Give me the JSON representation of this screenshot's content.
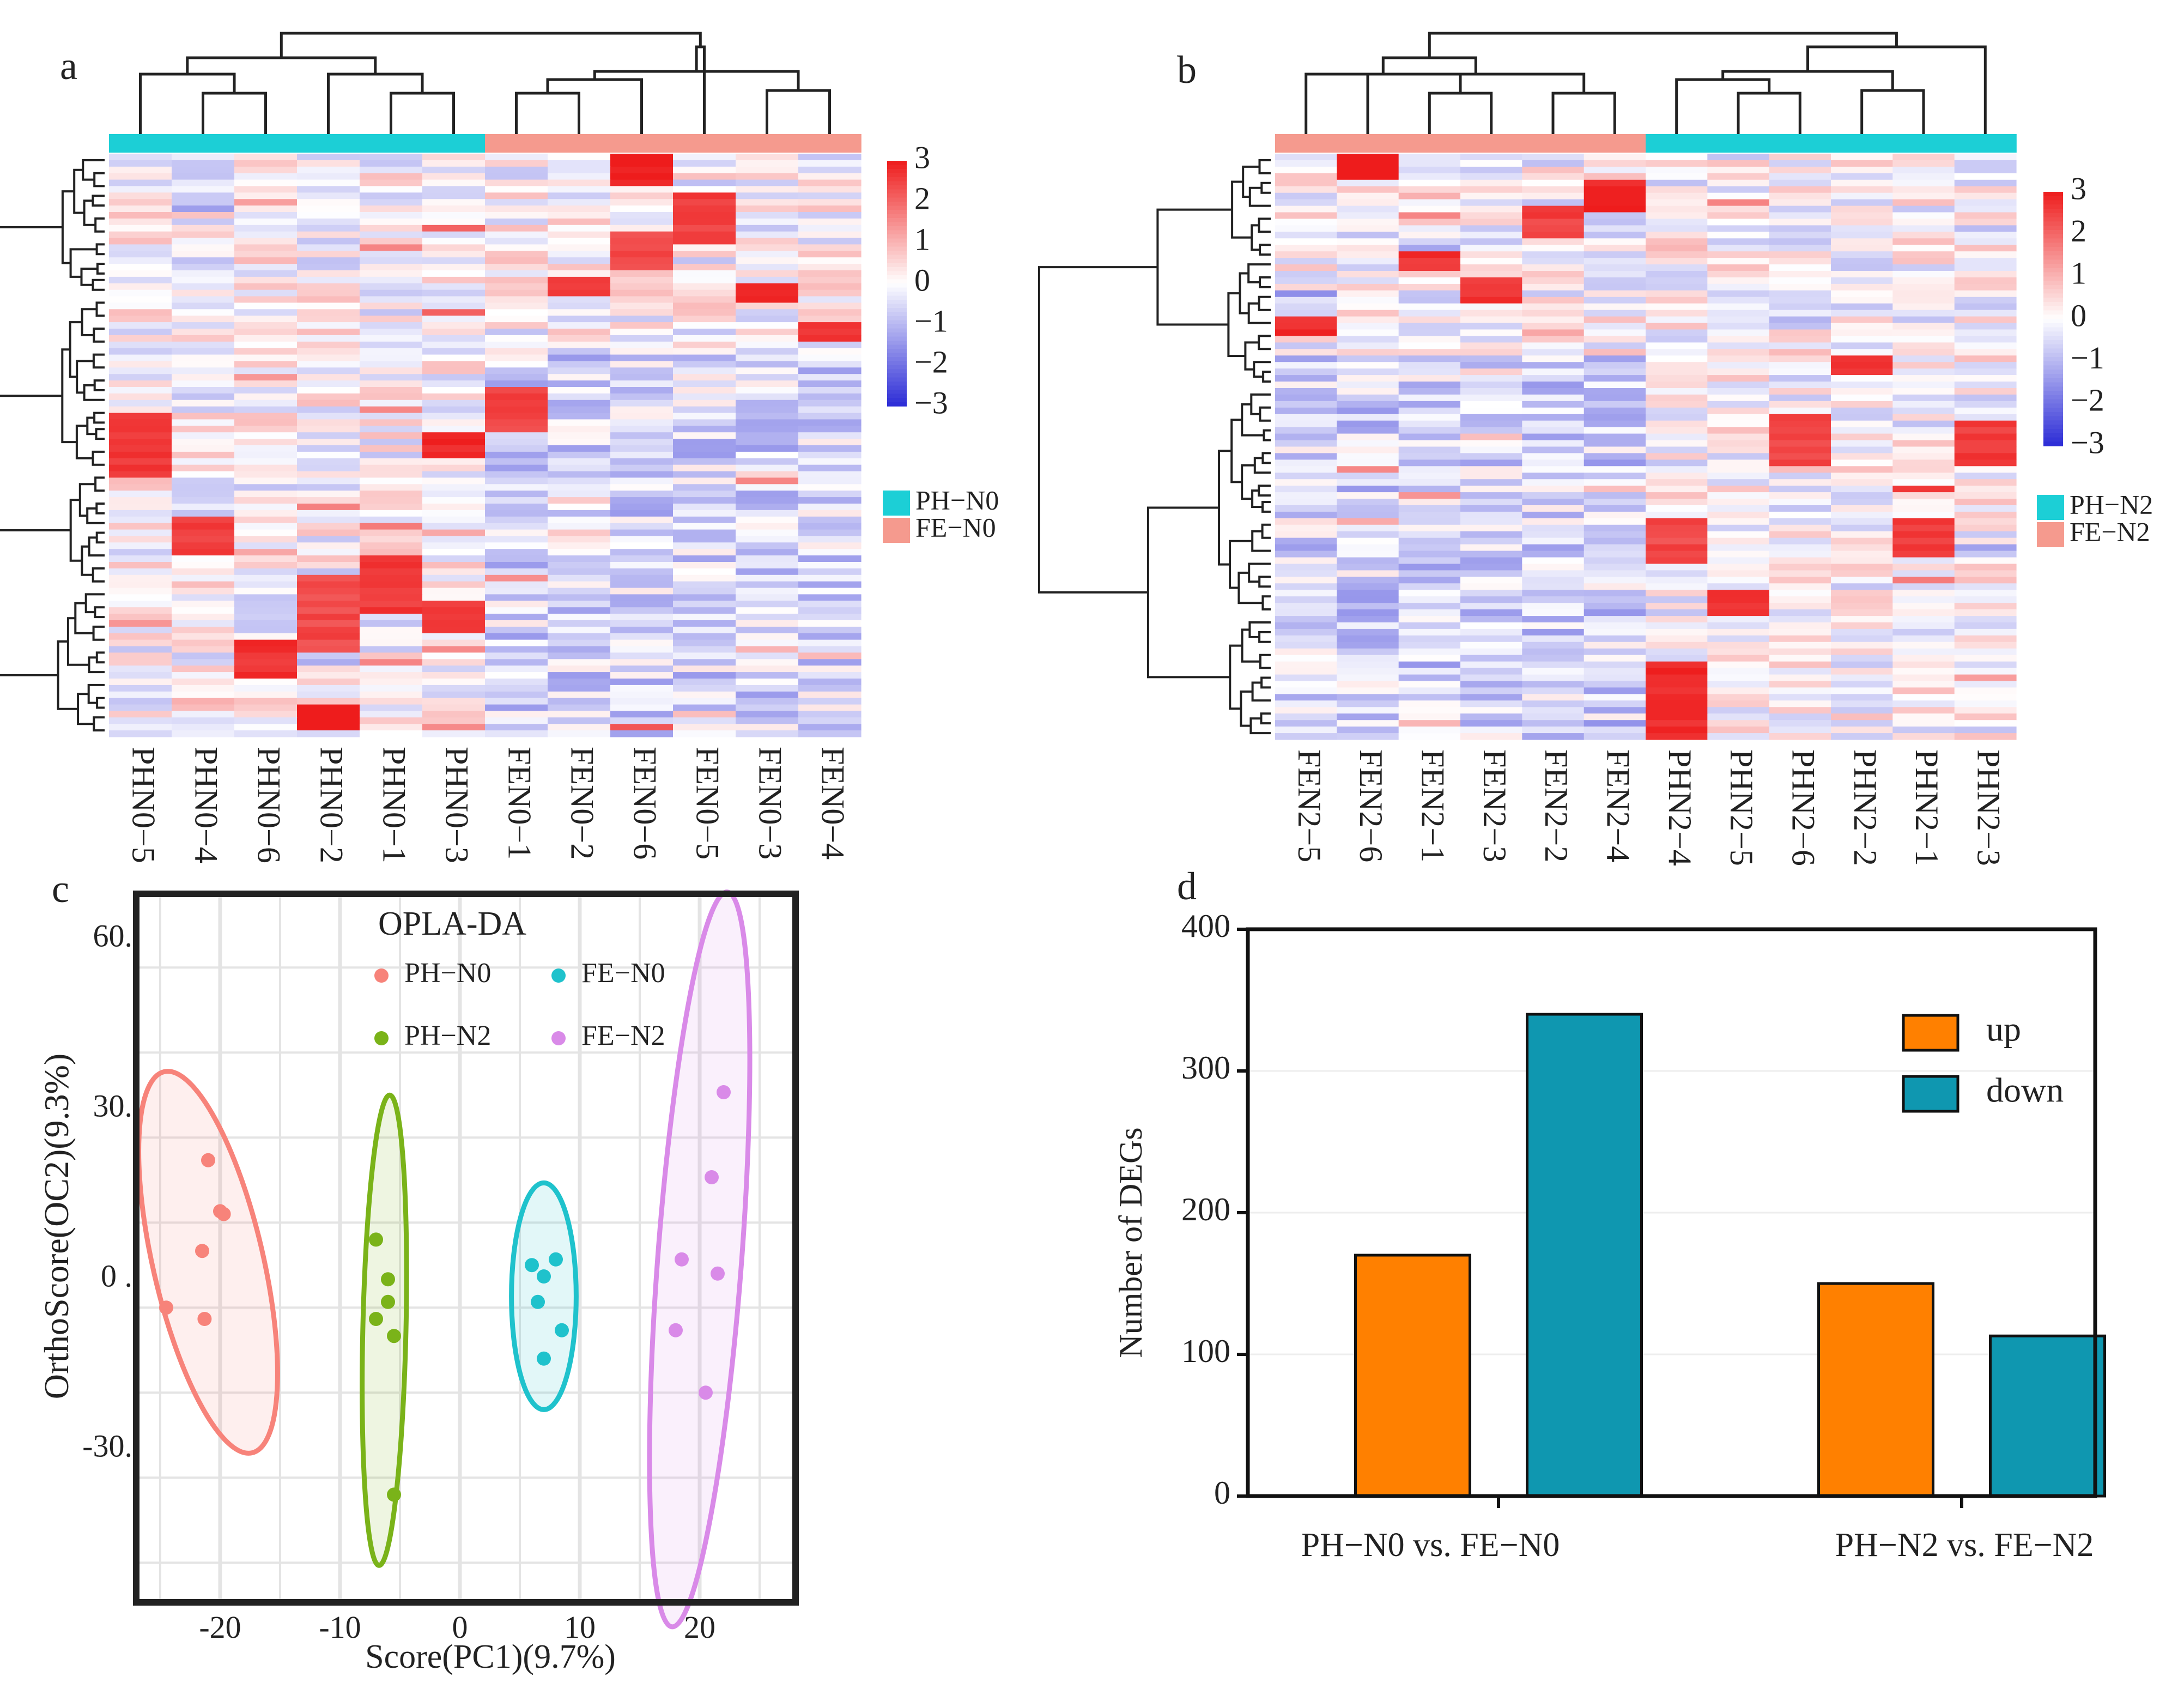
{
  "figure": {
    "panel_labels": [
      "a",
      "b",
      "c",
      "d"
    ],
    "colors": {
      "heat_low": "#2b2bd6",
      "heat_mid": "#ffffff",
      "heat_high": "#ee1c1c",
      "group_cyan": "#1ccfd6",
      "group_salmon": "#f59a8e",
      "ph_n0": "#f7837a",
      "fe_n0": "#1fc2cc",
      "ph_n2": "#7ab319",
      "fe_n2": "#d98ae8",
      "up": "#ff8000",
      "down": "#0f97b0"
    }
  },
  "chart_data": [
    {
      "panel": "a",
      "type": "heatmap",
      "columns": [
        "PHN0−5",
        "PHN0−4",
        "PHN0−6",
        "PHN0−2",
        "PHN0−1",
        "PHN0−3",
        "FEN0−1",
        "FEN0−2",
        "FEN0−6",
        "FEN0−5",
        "FEN0−3",
        "FEN0−4"
      ],
      "column_groups": [
        "PH−N0",
        "PH−N0",
        "PH−N0",
        "PH−N0",
        "PH−N0",
        "PH−N0",
        "FE−N0",
        "FE−N0",
        "FE−N0",
        "FE−N0",
        "FE−N0",
        "FE−N0"
      ],
      "color_scale": {
        "min": -3,
        "max": 3,
        "ticks": [
          "3",
          "2",
          "1",
          "0",
          "−1",
          "−2",
          "−3"
        ]
      },
      "legend": [
        {
          "label": "PH−N0",
          "color": "#1ccfd6"
        },
        {
          "label": "FE−N0",
          "color": "#f59a8e"
        }
      ],
      "row_count": 90
    },
    {
      "panel": "b",
      "type": "heatmap",
      "columns": [
        "FEN2−5",
        "FEN2−6",
        "FEN2−1",
        "FEN2−3",
        "FEN2−2",
        "FEN2−4",
        "PHN2−4",
        "PHN2−5",
        "PHN2−6",
        "PHN2−2",
        "PHN2−1",
        "PHN2−3"
      ],
      "column_groups": [
        "FE−N2",
        "FE−N2",
        "FE−N2",
        "FE−N2",
        "FE−N2",
        "FE−N2",
        "PH−N2",
        "PH−N2",
        "PH−N2",
        "PH−N2",
        "PH−N2",
        "PH−N2"
      ],
      "color_scale": {
        "min": -3,
        "max": 3,
        "ticks": [
          "3",
          "2",
          "1",
          "0",
          "−1",
          "−2",
          "−3"
        ]
      },
      "legend": [
        {
          "label": "PH−N2",
          "color": "#1ccfd6"
        },
        {
          "label": "FE−N2",
          "color": "#f59a8e"
        }
      ],
      "row_count": 90
    },
    {
      "panel": "c",
      "type": "scatter",
      "title": "OPLA-DA",
      "xlabel": "Score(PC1)(9.7%)",
      "ylabel": "OrthoScore(OC2)(9.3%)",
      "xlim": [
        -27,
        28
      ],
      "ylim": [
        -57,
        68
      ],
      "x_ticks": [
        -20,
        -10,
        0,
        10,
        20
      ],
      "y_ticks": [
        60,
        30,
        0,
        -30
      ],
      "x_tick_labels": [
        "-20",
        "-10",
        "0",
        "10",
        "20"
      ],
      "y_tick_labels": [
        "60.",
        "30.",
        "0 .",
        "-30."
      ],
      "series": [
        {
          "name": "PH−N0",
          "color": "#f7837a",
          "points": [
            [
              -21,
              21
            ],
            [
              -20,
              12
            ],
            [
              -19.7,
              11.5
            ],
            [
              -21.5,
              5
            ],
            [
              -24.5,
              -5
            ],
            [
              -21.3,
              -7
            ]
          ],
          "ellipse": {
            "cx": -21,
            "cy": 3,
            "rx": 4.6,
            "ry": 34.5,
            "rotate_deg": -13
          }
        },
        {
          "name": "FE−N0",
          "color": "#1fc2cc",
          "points": [
            [
              6,
              2.5
            ],
            [
              8,
              3.5
            ],
            [
              7,
              0.5
            ],
            [
              6.5,
              -4
            ],
            [
              8.5,
              -9
            ],
            [
              7,
              -14
            ]
          ],
          "ellipse": {
            "cx": 7,
            "cy": -3,
            "rx": 2.7,
            "ry": 20,
            "rotate_deg": 0
          }
        },
        {
          "name": "PH−N2",
          "color": "#7ab319",
          "points": [
            [
              -7,
              7
            ],
            [
              -6,
              0
            ],
            [
              -6,
              -4
            ],
            [
              -7,
              -7
            ],
            [
              -5.5,
              -10
            ],
            [
              -5.5,
              -38
            ]
          ],
          "ellipse": {
            "cx": -6.3,
            "cy": -9,
            "rx": 1.8,
            "ry": 41.5,
            "rotate_deg": 1.3
          }
        },
        {
          "name": "FE−N2",
          "color": "#d98ae8",
          "points": [
            [
              22,
              33
            ],
            [
              21,
              18
            ],
            [
              18.5,
              3.5
            ],
            [
              21.5,
              1
            ],
            [
              18,
              -9
            ],
            [
              20.5,
              -20
            ]
          ],
          "ellipse": {
            "cx": 20,
            "cy": 3.5,
            "rx": 3.5,
            "ry": 65,
            "rotate_deg": 4.3
          }
        }
      ]
    },
    {
      "panel": "d",
      "type": "bar",
      "categories": [
        "PH−N0 vs. FE−N0",
        "PH−N2 vs. FE−N2"
      ],
      "series": [
        {
          "name": "up",
          "color": "#ff8000",
          "values": [
            170,
            150
          ]
        },
        {
          "name": "down",
          "color": "#0f97b0",
          "values": [
            340,
            113
          ]
        }
      ],
      "ylabel": "Number of DEGs",
      "ylim": [
        0,
        400
      ],
      "y_ticks": [
        0,
        100,
        200,
        300,
        400
      ],
      "y_tick_labels": [
        "0",
        "100",
        "200",
        "300",
        "400"
      ]
    }
  ]
}
